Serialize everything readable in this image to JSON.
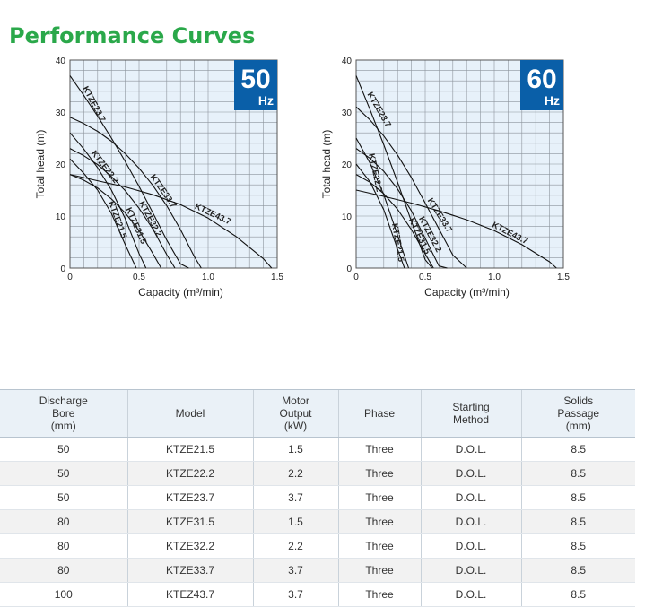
{
  "page_title": "Performance Curves",
  "chart_data": [
    {
      "type": "line",
      "badge": {
        "value": "50",
        "unit": "Hz"
      },
      "xlabel": "Capacity (m³/min)",
      "ylabel": "Total head (m)",
      "xlim": [
        0,
        1.5
      ],
      "ylim": [
        0,
        40
      ],
      "x_ticks": [
        "0",
        "0.5",
        "1.0",
        "1.5"
      ],
      "y_ticks": [
        "0",
        "10",
        "20",
        "30",
        "40"
      ],
      "grid": true,
      "series": [
        {
          "name": "KTZE23.7",
          "x": [
            0,
            0.1,
            0.2,
            0.3,
            0.4,
            0.5,
            0.6,
            0.7,
            0.8,
            0.86
          ],
          "y": [
            37,
            33.2,
            29.2,
            25,
            20.5,
            15.7,
            10.6,
            5.4,
            0.8,
            0
          ]
        },
        {
          "name": "KTZE22.2",
          "x": [
            0,
            0.1,
            0.2,
            0.3,
            0.4,
            0.5,
            0.55
          ],
          "y": [
            26,
            22.9,
            19.3,
            15,
            9.5,
            2.8,
            0
          ]
        },
        {
          "name": "KTZE21.5",
          "x": [
            0,
            0.1,
            0.2,
            0.3,
            0.4,
            0.48
          ],
          "y": [
            21,
            18.2,
            15,
            10.5,
            4.5,
            0
          ]
        },
        {
          "name": "KTZE32.2",
          "x": [
            0,
            0.1,
            0.2,
            0.3,
            0.4,
            0.5,
            0.6,
            0.7,
            0.76
          ],
          "y": [
            23,
            21.6,
            19.9,
            17.6,
            14.9,
            11.5,
            7.5,
            2.6,
            0
          ]
        },
        {
          "name": "KTZE31.5",
          "x": [
            0,
            0.1,
            0.2,
            0.3,
            0.4,
            0.5,
            0.6,
            0.66
          ],
          "y": [
            18,
            16.9,
            15.4,
            13.3,
            10.6,
            7.2,
            2.8,
            0
          ]
        },
        {
          "name": "KTZE33.7",
          "x": [
            0,
            0.1,
            0.2,
            0.3,
            0.4,
            0.5,
            0.6,
            0.7,
            0.8,
            0.9,
            0.95
          ],
          "y": [
            29,
            27.8,
            26.3,
            24.4,
            22,
            19.2,
            15.9,
            12,
            7.4,
            2.2,
            0
          ]
        },
        {
          "name": "KTZE43.7",
          "x": [
            0,
            0.2,
            0.4,
            0.6,
            0.8,
            1.0,
            1.2,
            1.4,
            1.46
          ],
          "y": [
            18,
            16.8,
            15.6,
            14.1,
            12.2,
            9.6,
            6.1,
            1.8,
            0
          ]
        }
      ]
    },
    {
      "type": "line",
      "badge": {
        "value": "60",
        "unit": "Hz"
      },
      "xlabel": "Capacity (m³/min)",
      "ylabel": "Total head (m)",
      "xlim": [
        0,
        1.5
      ],
      "ylim": [
        0,
        40
      ],
      "x_ticks": [
        "0",
        "0.5",
        "1.0",
        "1.5"
      ],
      "y_ticks": [
        "0",
        "10",
        "20",
        "30",
        "40"
      ],
      "grid": true,
      "series": [
        {
          "name": "KTZE23.7",
          "x": [
            0,
            0.1,
            0.2,
            0.3,
            0.4,
            0.5,
            0.55
          ],
          "y": [
            37,
            30.5,
            23.7,
            16.5,
            9,
            1.6,
            0
          ]
        },
        {
          "name": "KTZE22.2",
          "x": [
            0,
            0.1,
            0.2,
            0.3,
            0.38
          ],
          "y": [
            25,
            20.2,
            14.1,
            6.3,
            0
          ]
        },
        {
          "name": "KTZE21.5",
          "x": [
            0,
            0.1,
            0.2,
            0.3,
            0.35
          ],
          "y": [
            20,
            16.6,
            11.2,
            3.6,
            0
          ]
        },
        {
          "name": "KTZE32.2",
          "x": [
            0,
            0.1,
            0.2,
            0.3,
            0.4,
            0.5,
            0.6,
            0.66
          ],
          "y": [
            23,
            21.1,
            18.6,
            15.2,
            11,
            5.7,
            0.4,
            0
          ]
        },
        {
          "name": "KTZE31.5",
          "x": [
            0,
            0.1,
            0.2,
            0.3,
            0.4,
            0.5,
            0.56
          ],
          "y": [
            18,
            16.5,
            14.3,
            11.3,
            7.4,
            2.7,
            0
          ]
        },
        {
          "name": "KTZE33.7",
          "x": [
            0,
            0.1,
            0.2,
            0.3,
            0.4,
            0.5,
            0.6,
            0.7,
            0.8
          ],
          "y": [
            31,
            28.5,
            25.4,
            21.7,
            17.4,
            12.5,
            7.5,
            2.5,
            0
          ]
        },
        {
          "name": "KTZE43.7",
          "x": [
            0,
            0.2,
            0.4,
            0.6,
            0.8,
            1.0,
            1.2,
            1.4,
            1.45
          ],
          "y": [
            15,
            13.8,
            12.5,
            11,
            9.3,
            7.2,
            4.5,
            1.2,
            0
          ]
        }
      ]
    }
  ],
  "table": {
    "headers": [
      "Discharge\nBore\n(mm)",
      "Model",
      "Motor\nOutput\n(kW)",
      "Phase",
      "Starting\nMethod",
      "Solids\nPassage\n(mm)"
    ],
    "rows": [
      [
        "50",
        "KTZE21.5",
        "1.5",
        "Three",
        "D.O.L.",
        "8.5"
      ],
      [
        "50",
        "KTZE22.2",
        "2.2",
        "Three",
        "D.O.L.",
        "8.5"
      ],
      [
        "50",
        "KTZE23.7",
        "3.7",
        "Three",
        "D.O.L.",
        "8.5"
      ],
      [
        "80",
        "KTZE31.5",
        "1.5",
        "Three",
        "D.O.L.",
        "8.5"
      ],
      [
        "80",
        "KTZE32.2",
        "2.2",
        "Three",
        "D.O.L.",
        "8.5"
      ],
      [
        "80",
        "KTZE33.7",
        "3.7",
        "Three",
        "D.O.L.",
        "8.5"
      ],
      [
        "100",
        "KTEZ43.7",
        "3.7",
        "Three",
        "D.O.L.",
        "8.5"
      ]
    ]
  },
  "colors": {
    "title": "#2aa84a",
    "badge": "#0a5fa8",
    "plot_bg": "#e7f1fa",
    "grid": "#8c949c",
    "curve": "#111111",
    "header_bg": "#eaf1f7"
  }
}
